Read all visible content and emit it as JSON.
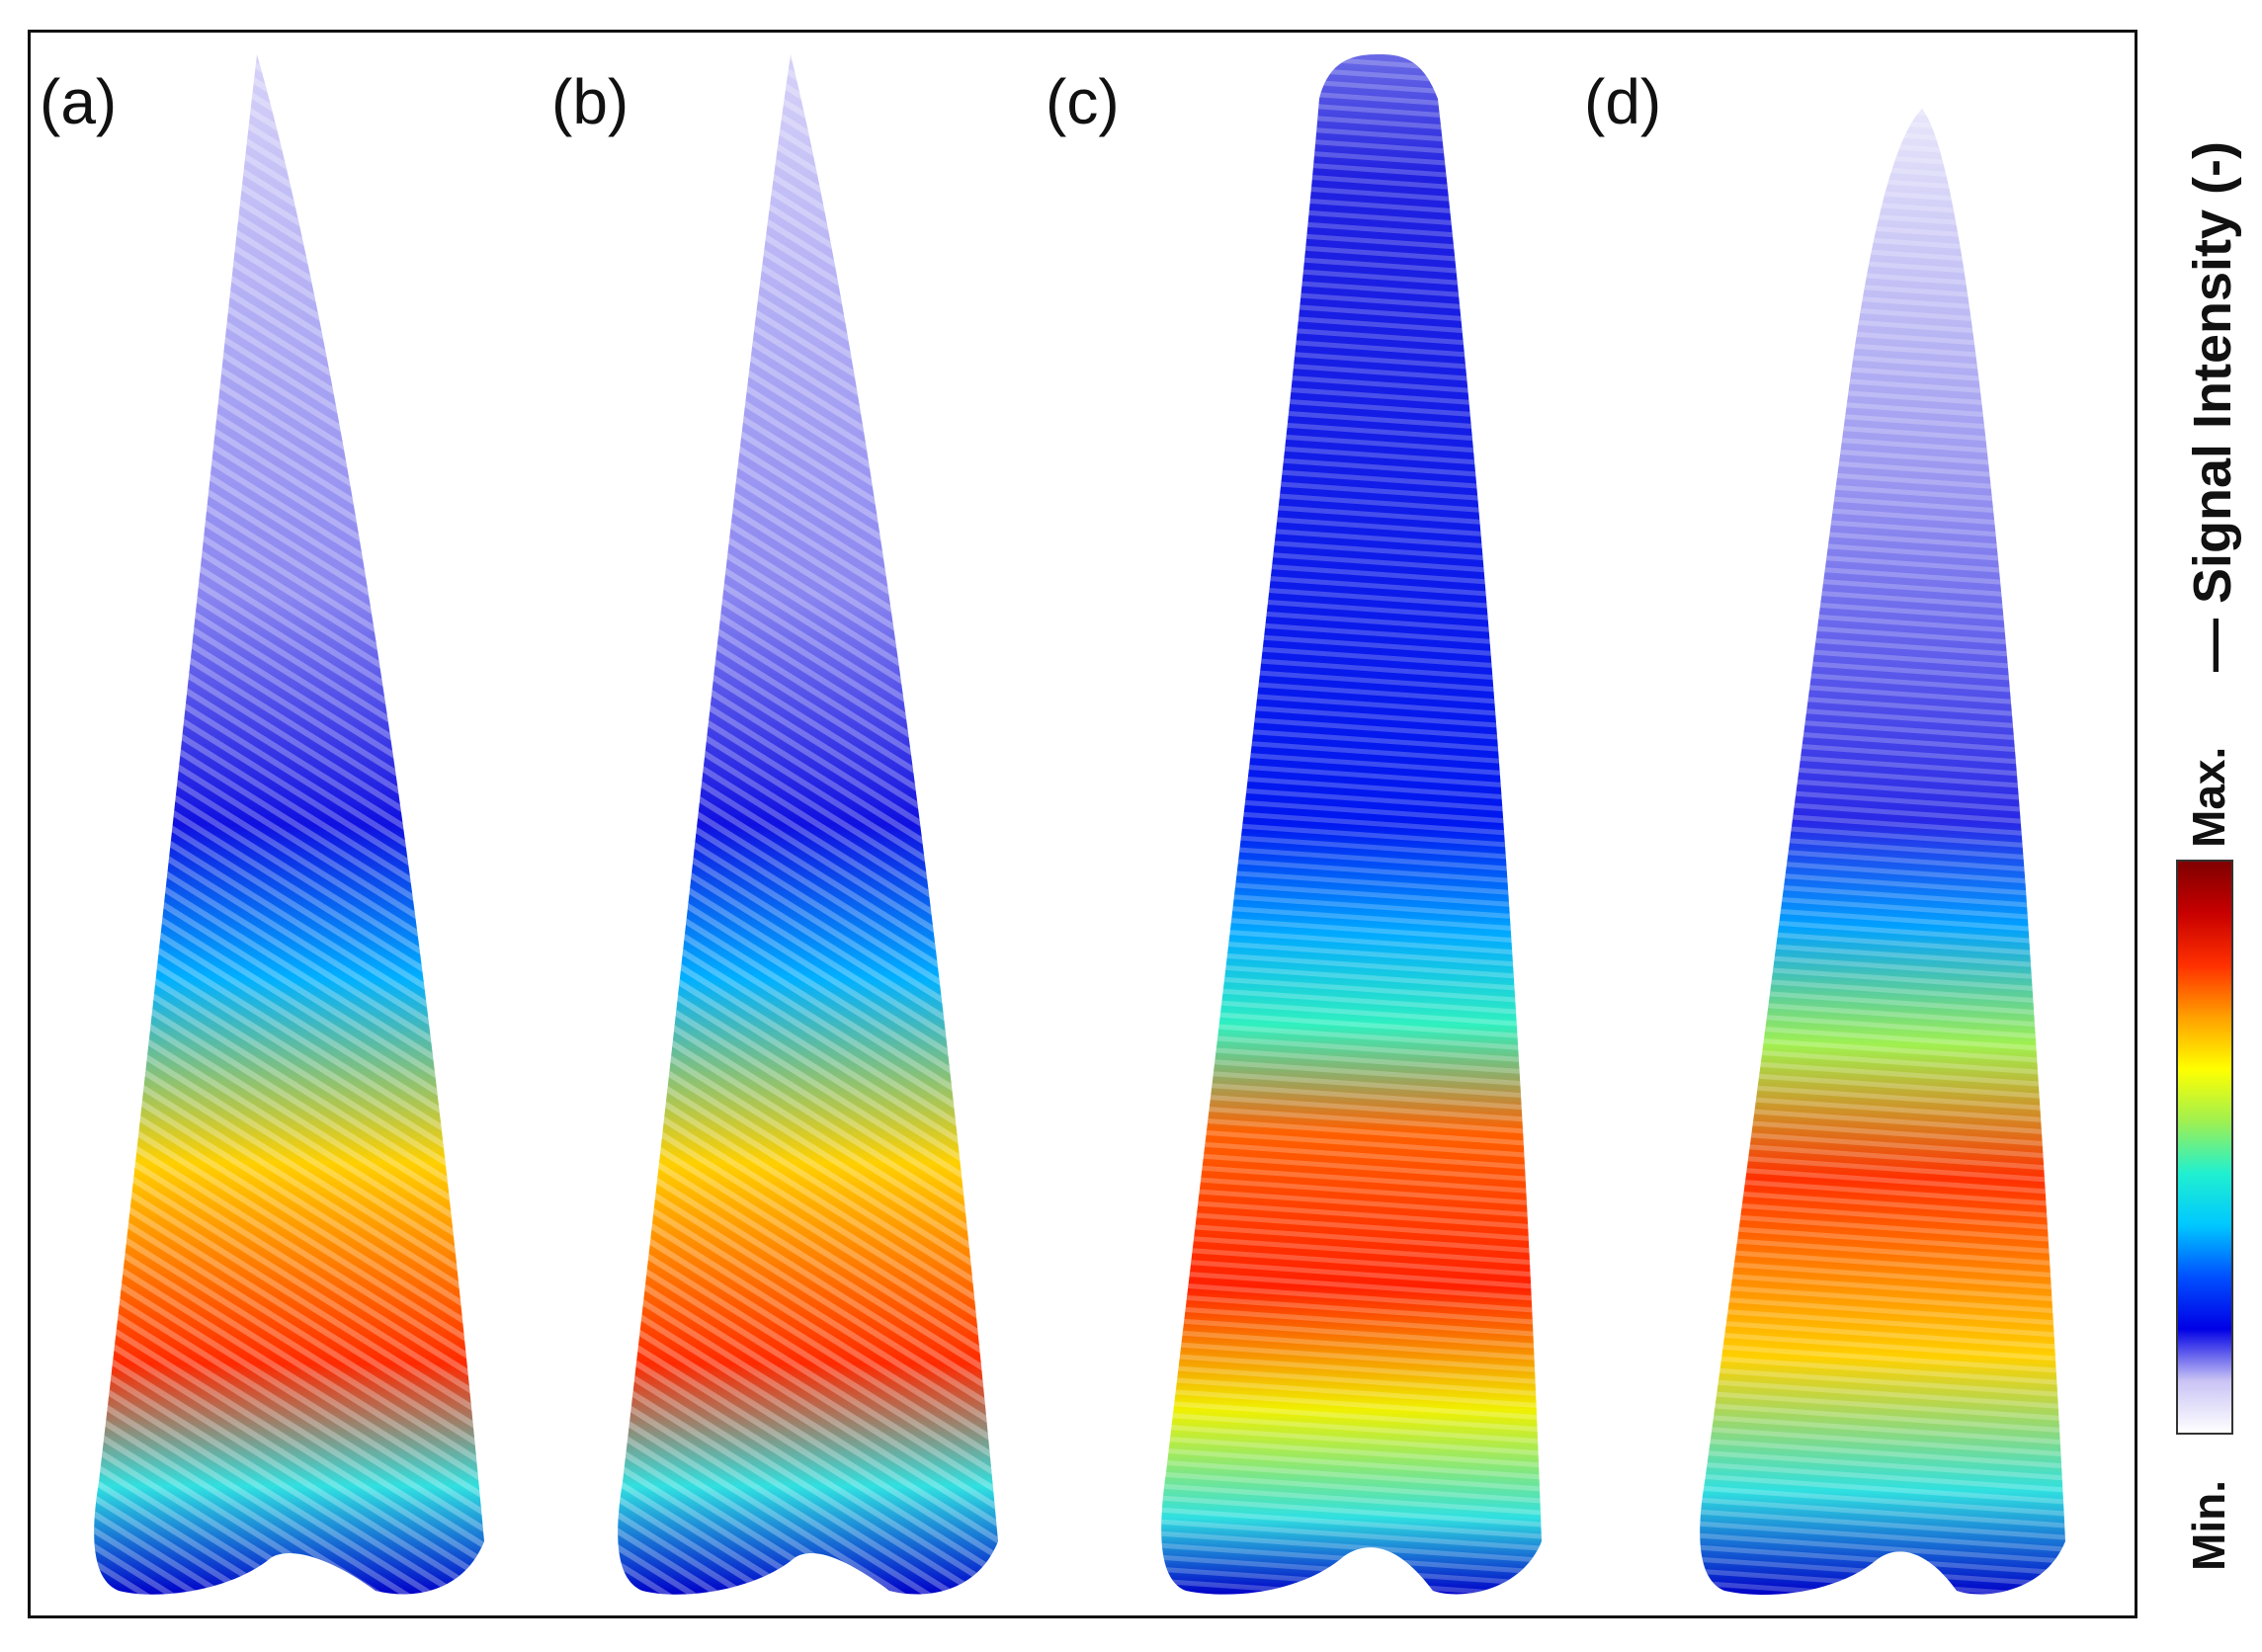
{
  "panels": [
    {
      "label": "(a)",
      "shape": "divergent"
    },
    {
      "label": "(b)",
      "shape": "divergent"
    },
    {
      "label": "(c)",
      "shape": "vertical"
    },
    {
      "label": "(d)",
      "shape": "vertical-faint"
    }
  ],
  "colorbar": {
    "min_label": "Min.",
    "max_label": "Max.",
    "title": "— Signal Intensity (-)",
    "colors": [
      "#ffffff",
      "#c9c3f5",
      "#0000e6",
      "#0050ff",
      "#00c8ff",
      "#20f0d0",
      "#a0f050",
      "#ffff00",
      "#ffa000",
      "#ff3000",
      "#c80000",
      "#800000"
    ]
  },
  "colors": {
    "frame": "#111111",
    "background": "#ffffff"
  }
}
